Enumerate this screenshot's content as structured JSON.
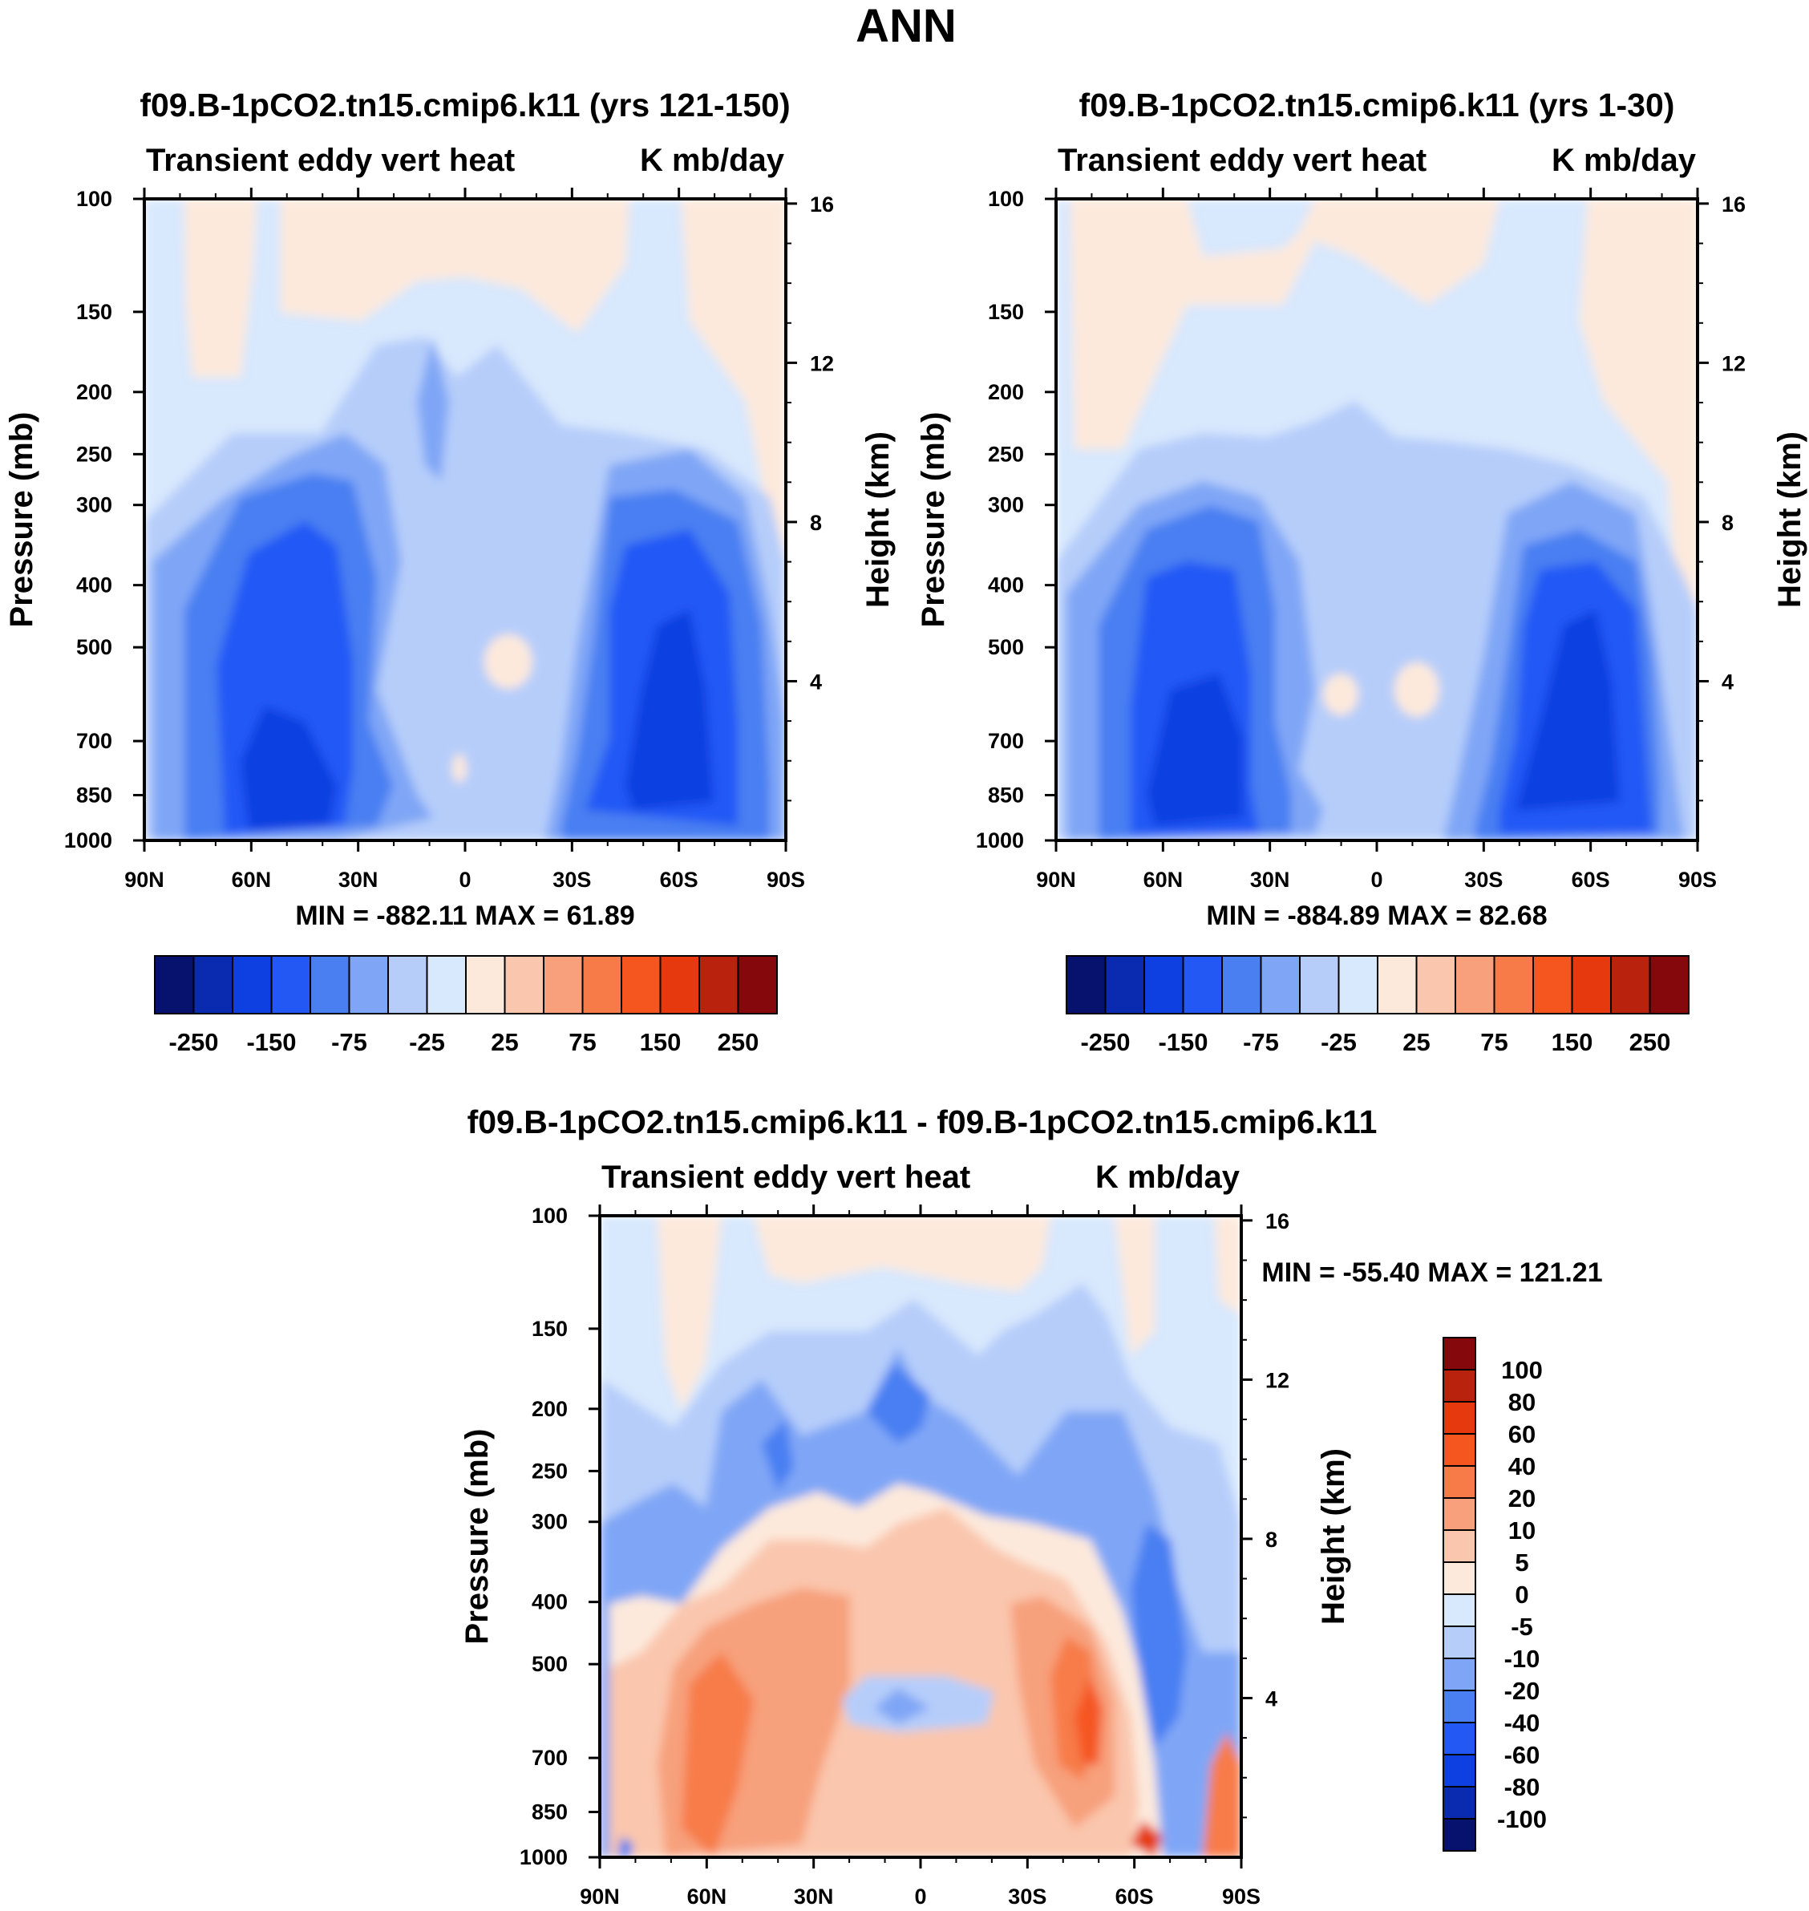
{
  "page": {
    "title": "ANN",
    "colors": {
      "text": "#000000",
      "frame": "#000000",
      "background": "#ffffff"
    }
  },
  "chart_data": [
    {
      "type": "heatmap",
      "title": "f09.B-1pCO2.tn15.cmip6.k11 (yrs 121-150)",
      "left_label": "Transient eddy vert heat",
      "right_label": "K mb/day",
      "xlabel": "",
      "ylabel": "Pressure (mb)",
      "ylabel_right": "Height (km)",
      "x_ticks": [
        "90N",
        "60N",
        "30N",
        "0",
        "30S",
        "60S",
        "90S"
      ],
      "y_ticks": [
        100,
        150,
        200,
        250,
        300,
        400,
        500,
        700,
        850,
        1000
      ],
      "height_ticks": [
        4,
        8,
        12,
        16
      ],
      "stats_text": "MIN = -882.11   MAX =  61.89",
      "min": -882.11,
      "max": 61.89,
      "colorbar": {
        "labels": [
          "-250",
          "-150",
          "-75",
          "-25",
          "25",
          "75",
          "150",
          "250"
        ],
        "colors": [
          "#07116e",
          "#0a2ab0",
          "#0e3fe0",
          "#2358f5",
          "#4a7ff2",
          "#7fa6f6",
          "#b6cdfa",
          "#d8e8fd",
          "#fde9dc",
          "#fac6ad",
          "#f7a07b",
          "#f77b48",
          "#f55620",
          "#e63a0e",
          "#b9220c",
          "#85090c"
        ]
      }
    },
    {
      "type": "heatmap",
      "title": "f09.B-1pCO2.tn15.cmip6.k11 (yrs 1-30)",
      "left_label": "Transient eddy vert heat",
      "right_label": "K mb/day",
      "xlabel": "",
      "ylabel": "Pressure (mb)",
      "ylabel_right": "Height (km)",
      "x_ticks": [
        "90N",
        "60N",
        "30N",
        "0",
        "30S",
        "60S",
        "90S"
      ],
      "y_ticks": [
        100,
        150,
        200,
        250,
        300,
        400,
        500,
        700,
        850,
        1000
      ],
      "height_ticks": [
        4,
        8,
        12,
        16
      ],
      "stats_text": "MIN = -884.89   MAX =  82.68",
      "min": -884.89,
      "max": 82.68,
      "colorbar": {
        "labels": [
          "-250",
          "-150",
          "-75",
          "-25",
          "25",
          "75",
          "150",
          "250"
        ],
        "colors": [
          "#07116e",
          "#0a2ab0",
          "#0e3fe0",
          "#2358f5",
          "#4a7ff2",
          "#7fa6f6",
          "#b6cdfa",
          "#d8e8fd",
          "#fde9dc",
          "#fac6ad",
          "#f7a07b",
          "#f77b48",
          "#f55620",
          "#e63a0e",
          "#b9220c",
          "#85090c"
        ]
      }
    },
    {
      "type": "heatmap",
      "title": "f09.B-1pCO2.tn15.cmip6.k11 - f09.B-1pCO2.tn15.cmip6.k11",
      "left_label": "Transient eddy vert heat",
      "right_label": "K mb/day",
      "xlabel": "",
      "ylabel": "Pressure (mb)",
      "ylabel_right": "Height (km)",
      "x_ticks": [
        "90N",
        "60N",
        "30N",
        "0",
        "30S",
        "60S",
        "90S"
      ],
      "y_ticks": [
        100,
        150,
        200,
        250,
        300,
        400,
        500,
        700,
        850,
        1000
      ],
      "height_ticks": [
        4,
        8,
        12,
        16
      ],
      "stats_text": "MIN = -55.40   MAX = 121.21",
      "min": -55.4,
      "max": 121.21,
      "colorbar": {
        "labels": [
          "100",
          "80",
          "60",
          "40",
          "20",
          "10",
          "5",
          "0",
          "-5",
          "-10",
          "-20",
          "-40",
          "-60",
          "-80",
          "-100"
        ],
        "colors": [
          "#85090c",
          "#b9220c",
          "#e63a0e",
          "#f55620",
          "#f77b48",
          "#f7a07b",
          "#fac6ad",
          "#fde9dc",
          "#d8e8fd",
          "#b6cdfa",
          "#7fa6f6",
          "#4a7ff2",
          "#2358f5",
          "#0e3fe0",
          "#0a2ab0",
          "#07116e"
        ]
      }
    }
  ]
}
